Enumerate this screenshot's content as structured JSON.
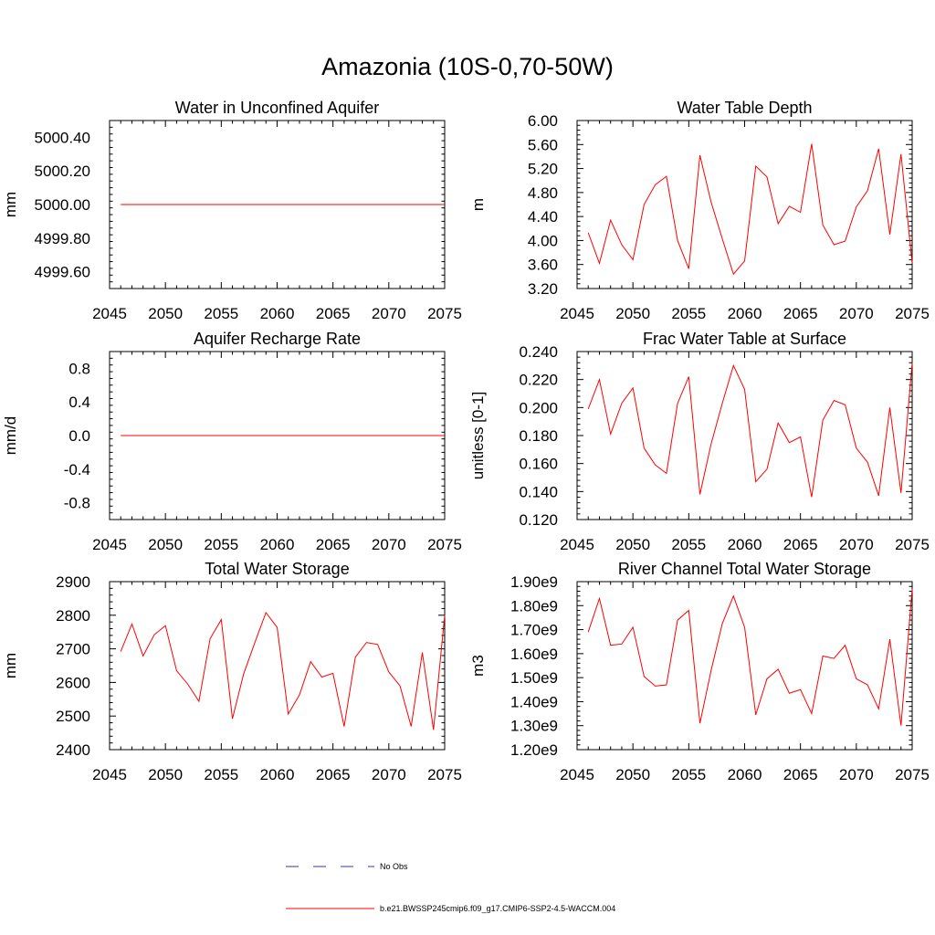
{
  "main_title": "Amazonia (10S-0,70-50W)",
  "colors": {
    "model": "#ff0000",
    "obs": "#3333aa",
    "axis": "#000000"
  },
  "legend": {
    "obs_label": "No Obs",
    "model_label": "b.e21.BWSSP245cmip6.f09_g17.CMIP6-SSP2-4.5-WACCM.004"
  },
  "chart_data": [
    {
      "type": "line",
      "title": "Water in Unconfined Aquifer",
      "ylabel": "mm",
      "xlim": [
        2045,
        2075
      ],
      "ylim": [
        4999.5,
        5000.5
      ],
      "yticks": [
        4999.6,
        4999.8,
        5000.0,
        5000.2,
        5000.4
      ],
      "ytick_labels": [
        "4999.60",
        "4999.80",
        "5000.00",
        "5000.20",
        "5000.40"
      ],
      "xticks": [
        2045,
        2050,
        2055,
        2060,
        2065,
        2070,
        2075
      ],
      "x": [
        2046,
        2047,
        2048,
        2049,
        2050,
        2051,
        2052,
        2053,
        2054,
        2055,
        2056,
        2057,
        2058,
        2059,
        2060,
        2061,
        2062,
        2063,
        2064,
        2065,
        2066,
        2067,
        2068,
        2069,
        2070,
        2071,
        2072,
        2073,
        2074,
        2075
      ],
      "series": [
        {
          "values": [
            5000,
            5000,
            5000,
            5000,
            5000,
            5000,
            5000,
            5000,
            5000,
            5000,
            5000,
            5000,
            5000,
            5000,
            5000,
            5000,
            5000,
            5000,
            5000,
            5000,
            5000,
            5000,
            5000,
            5000,
            5000,
            5000,
            5000,
            5000,
            5000,
            5000
          ]
        }
      ]
    },
    {
      "type": "line",
      "title": "Water Table Depth",
      "ylabel": "m",
      "xlim": [
        2045,
        2075
      ],
      "ylim": [
        3.2,
        6.0
      ],
      "yticks": [
        3.2,
        3.6,
        4.0,
        4.4,
        4.8,
        5.2,
        5.6,
        6.0
      ],
      "ytick_labels": [
        "3.20",
        "3.60",
        "4.00",
        "4.40",
        "4.80",
        "5.20",
        "5.60",
        "6.00"
      ],
      "xticks": [
        2045,
        2050,
        2055,
        2060,
        2065,
        2070,
        2075
      ],
      "x": [
        2046,
        2047,
        2048,
        2049,
        2050,
        2051,
        2052,
        2053,
        2054,
        2055,
        2056,
        2057,
        2058,
        2059,
        2060,
        2061,
        2062,
        2063,
        2064,
        2065,
        2066,
        2067,
        2068,
        2069,
        2070,
        2071,
        2072,
        2073,
        2074,
        2075
      ],
      "series": [
        {
          "values": [
            4.13,
            3.62,
            4.34,
            3.93,
            3.68,
            4.6,
            4.93,
            5.07,
            4.0,
            3.53,
            5.42,
            4.64,
            4.03,
            3.44,
            3.66,
            5.24,
            5.06,
            4.28,
            4.57,
            4.47,
            5.61,
            4.26,
            3.93,
            3.99,
            4.56,
            4.83,
            5.53,
            4.1,
            5.44,
            3.62
          ]
        }
      ]
    },
    {
      "type": "line",
      "title": "Aquifer Recharge Rate",
      "ylabel": "mm/d",
      "xlim": [
        2045,
        2075
      ],
      "ylim": [
        -1.0,
        1.0
      ],
      "yticks": [
        -0.8,
        -0.4,
        0.0,
        0.4,
        0.8
      ],
      "ytick_labels": [
        "-0.8",
        "-0.4",
        "0.0",
        "0.4",
        "0.8"
      ],
      "xticks": [
        2045,
        2050,
        2055,
        2060,
        2065,
        2070,
        2075
      ],
      "x": [
        2046,
        2047,
        2048,
        2049,
        2050,
        2051,
        2052,
        2053,
        2054,
        2055,
        2056,
        2057,
        2058,
        2059,
        2060,
        2061,
        2062,
        2063,
        2064,
        2065,
        2066,
        2067,
        2068,
        2069,
        2070,
        2071,
        2072,
        2073,
        2074,
        2075
      ],
      "series": [
        {
          "values": [
            0,
            0,
            0,
            0,
            0,
            0,
            0,
            0,
            0,
            0,
            0,
            0,
            0,
            0,
            0,
            0,
            0,
            0,
            0,
            0,
            0,
            0,
            0,
            0,
            0,
            0,
            0,
            0,
            0,
            0
          ]
        }
      ]
    },
    {
      "type": "line",
      "title": "Frac Water Table at Surface",
      "ylabel": "unitless [0-1]",
      "xlim": [
        2045,
        2075
      ],
      "ylim": [
        0.12,
        0.24
      ],
      "yticks": [
        0.12,
        0.14,
        0.16,
        0.18,
        0.2,
        0.22,
        0.24
      ],
      "ytick_labels": [
        "0.120",
        "0.140",
        "0.160",
        "0.180",
        "0.200",
        "0.220",
        "0.240"
      ],
      "xticks": [
        2045,
        2050,
        2055,
        2060,
        2065,
        2070,
        2075
      ],
      "x": [
        2046,
        2047,
        2048,
        2049,
        2050,
        2051,
        2052,
        2053,
        2054,
        2055,
        2056,
        2057,
        2058,
        2059,
        2060,
        2061,
        2062,
        2063,
        2064,
        2065,
        2066,
        2067,
        2068,
        2069,
        2070,
        2071,
        2072,
        2073,
        2074,
        2075
      ],
      "series": [
        {
          "values": [
            0.199,
            0.22,
            0.181,
            0.203,
            0.214,
            0.171,
            0.159,
            0.153,
            0.203,
            0.222,
            0.138,
            0.174,
            0.203,
            0.23,
            0.213,
            0.147,
            0.156,
            0.189,
            0.175,
            0.179,
            0.136,
            0.191,
            0.205,
            0.202,
            0.171,
            0.161,
            0.137,
            0.2,
            0.139,
            0.232
          ]
        }
      ]
    },
    {
      "type": "line",
      "title": "Total Water Storage",
      "ylabel": "mm",
      "xlim": [
        2045,
        2075
      ],
      "ylim": [
        2400,
        2900
      ],
      "yticks": [
        2400,
        2500,
        2600,
        2700,
        2800,
        2900
      ],
      "ytick_labels": [
        "2400",
        "2500",
        "2600",
        "2700",
        "2800",
        "2900"
      ],
      "xticks": [
        2045,
        2050,
        2055,
        2060,
        2065,
        2070,
        2075
      ],
      "x": [
        2046,
        2047,
        2048,
        2049,
        2050,
        2051,
        2052,
        2053,
        2054,
        2055,
        2056,
        2057,
        2058,
        2059,
        2060,
        2061,
        2062,
        2063,
        2064,
        2065,
        2066,
        2067,
        2068,
        2069,
        2070,
        2071,
        2072,
        2073,
        2074,
        2075
      ],
      "series": [
        {
          "values": [
            2692,
            2774,
            2679,
            2742,
            2769,
            2635,
            2595,
            2544,
            2730,
            2787,
            2492,
            2625,
            2718,
            2808,
            2764,
            2506,
            2563,
            2662,
            2616,
            2627,
            2469,
            2675,
            2719,
            2713,
            2631,
            2590,
            2469,
            2689,
            2459,
            2800
          ]
        }
      ]
    },
    {
      "type": "line",
      "title": "River Channel Total Water Storage",
      "ylabel": "m3",
      "xlim": [
        2045,
        2075
      ],
      "ylim": [
        1200000000.0,
        1900000000.0
      ],
      "yticks": [
        1200000000.0,
        1300000000.0,
        1400000000.0,
        1500000000.0,
        1600000000.0,
        1700000000.0,
        1800000000.0,
        1900000000.0
      ],
      "ytick_labels": [
        "1.20e9",
        "1.30e9",
        "1.40e9",
        "1.50e9",
        "1.60e9",
        "1.70e9",
        "1.80e9",
        "1.90e9"
      ],
      "xticks": [
        2045,
        2050,
        2055,
        2060,
        2065,
        2070,
        2075
      ],
      "x": [
        2046,
        2047,
        2048,
        2049,
        2050,
        2051,
        2052,
        2053,
        2054,
        2055,
        2056,
        2057,
        2058,
        2059,
        2060,
        2061,
        2062,
        2063,
        2064,
        2065,
        2066,
        2067,
        2068,
        2069,
        2070,
        2071,
        2072,
        2073,
        2074,
        2075
      ],
      "series": [
        {
          "values": [
            1690000000.0,
            1830000000.0,
            1635000000.0,
            1640000000.0,
            1710000000.0,
            1505000000.0,
            1465000000.0,
            1470000000.0,
            1740000000.0,
            1780000000.0,
            1310000000.0,
            1530000000.0,
            1725000000.0,
            1840000000.0,
            1710000000.0,
            1345000000.0,
            1495000000.0,
            1535000000.0,
            1435000000.0,
            1450000000.0,
            1350000000.0,
            1590000000.0,
            1580000000.0,
            1635000000.0,
            1495000000.0,
            1470000000.0,
            1370000000.0,
            1660000000.0,
            1300000000.0,
            1870000000.0
          ]
        }
      ]
    }
  ]
}
